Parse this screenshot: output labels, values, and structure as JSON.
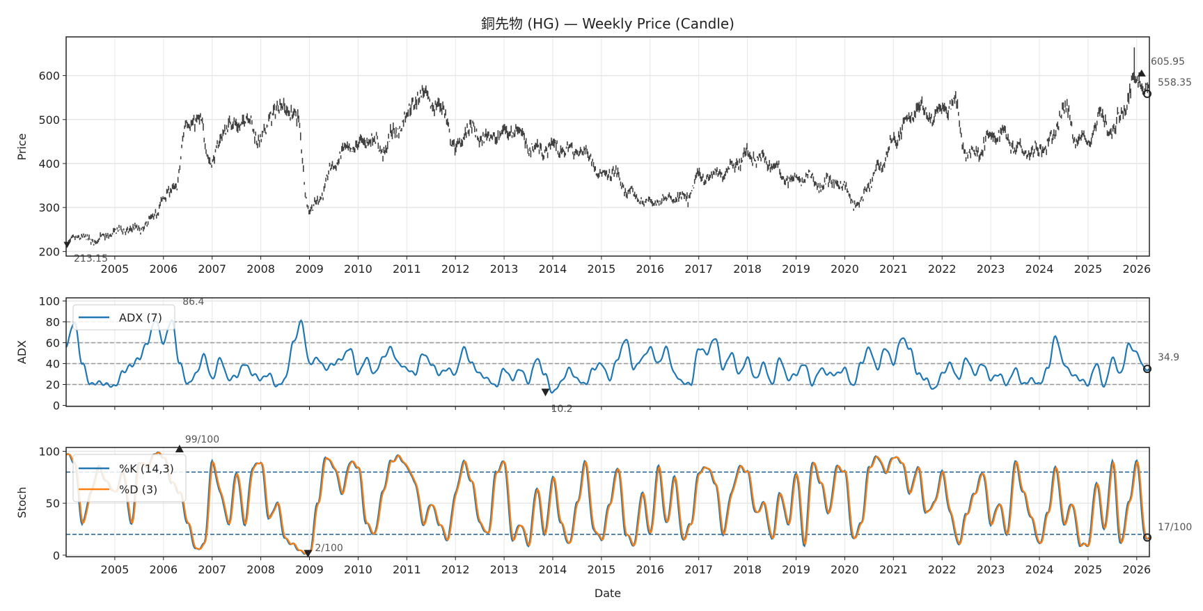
{
  "chart_data": [
    {
      "type": "candlestick",
      "title": "銅先物 (HG) — Weekly Price (Candle)",
      "ylabel": "Price",
      "xlim": [
        2004.0,
        2026.26
      ],
      "ylim": [
        189.5,
        688
      ],
      "yticks": [
        200,
        300,
        400,
        500,
        600
      ],
      "xticks": [
        "2005",
        "2006",
        "2007",
        "2008",
        "2009",
        "2010",
        "2011",
        "2012",
        "2013",
        "2014",
        "2015",
        "2016",
        "2017",
        "2018",
        "2019",
        "2020",
        "2021",
        "2022",
        "2023",
        "2024",
        "2025",
        "2026"
      ],
      "grid": true,
      "x_start": 2004.0,
      "x_step_years": 0.25,
      "close_quarterly": [
        215,
        235,
        225,
        230,
        245,
        250,
        250,
        270,
        320,
        350,
        500,
        490,
        400,
        480,
        490,
        500,
        450,
        520,
        530,
        500,
        290,
        330,
        400,
        430,
        440,
        460,
        430,
        470,
        510,
        560,
        540,
        520,
        430,
        480,
        460,
        460,
        470,
        480,
        440,
        430,
        440,
        430,
        430,
        420,
        370,
        380,
        340,
        320,
        310,
        320,
        320,
        320,
        370,
        370,
        380,
        400,
        420,
        410,
        400,
        370,
        360,
        370,
        350,
        360,
        345,
        300,
        350,
        400,
        450,
        490,
        530,
        510,
        520,
        540,
        420,
        430,
        460,
        470,
        440,
        430,
        430,
        450,
        530,
        460,
        450,
        510,
        470,
        530,
        600,
        558.35
      ],
      "annotations": {
        "min_label": "213.15",
        "max_label": "605.95",
        "last_label": "558.35"
      }
    },
    {
      "type": "line",
      "ylabel": "ADX",
      "ylim": [
        -1,
        103
      ],
      "yticks": [
        0,
        20,
        40,
        60,
        80,
        100
      ],
      "reference_lines": [
        20,
        40,
        60,
        80
      ],
      "legend": [
        "ADX (7)"
      ],
      "legend_position": "top-left",
      "x_start": 2004.0,
      "x_step_years": 0.16667,
      "series": [
        {
          "name": "ADX (7)",
          "color": "#1f77b4",
          "values": [
            57,
            80,
            40,
            20,
            22,
            20,
            18,
            32,
            38,
            45,
            60,
            82,
            60,
            82,
            40,
            20,
            30,
            48,
            25,
            45,
            25,
            28,
            40,
            30,
            25,
            30,
            18,
            25,
            60,
            80,
            40,
            45,
            35,
            40,
            45,
            55,
            30,
            45,
            30,
            45,
            55,
            40,
            35,
            30,
            50,
            40,
            30,
            35,
            30,
            55,
            40,
            30,
            25,
            18,
            35,
            25,
            35,
            22,
            45,
            30,
            12,
            22,
            35,
            25,
            20,
            35,
            40,
            25,
            45,
            64,
            35,
            45,
            55,
            40,
            55,
            30,
            22,
            20,
            55,
            50,
            65,
            35,
            50,
            30,
            45,
            25,
            40,
            20,
            45,
            25,
            30,
            40,
            20,
            35,
            30,
            30,
            35,
            18,
            40,
            55,
            35,
            55,
            40,
            65,
            55,
            30,
            25,
            15,
            30,
            40,
            25,
            45,
            30,
            40,
            25,
            30,
            20,
            35,
            20,
            25,
            20,
            35,
            66,
            40,
            30,
            25,
            20,
            40,
            18,
            45,
            30,
            58,
            50,
            34.9
          ]
        }
      ],
      "annotations": {
        "max_label": "86.4",
        "max_x": 2006.45,
        "min_label": "10.2",
        "min_x": 2013.85,
        "last_label": "34.9"
      }
    },
    {
      "type": "line",
      "ylabel": "Stoch",
      "xlabel": "Date",
      "ylim": [
        -1.5,
        103.7
      ],
      "yticks": [
        0,
        50,
        100
      ],
      "reference_lines": [
        20,
        80
      ],
      "legend": [
        "%K (14,3)",
        "%D (3)"
      ],
      "legend_position": "top-left",
      "x_start": 2004.0,
      "x_step_years": 0.16667,
      "series": [
        {
          "name": "%K (14,3)",
          "color": "#1f77b4",
          "values": [
            98,
            90,
            30,
            60,
            85,
            70,
            60,
            80,
            30,
            90,
            85,
            99,
            95,
            70,
            60,
            30,
            5,
            10,
            90,
            60,
            30,
            80,
            30,
            85,
            90,
            35,
            50,
            15,
            10,
            3,
            2,
            50,
            95,
            85,
            60,
            90,
            85,
            30,
            20,
            60,
            90,
            95,
            85,
            70,
            30,
            50,
            30,
            15,
            60,
            90,
            70,
            30,
            20,
            80,
            90,
            15,
            30,
            10,
            65,
            20,
            75,
            30,
            10,
            50,
            90,
            25,
            15,
            50,
            85,
            20,
            10,
            60,
            20,
            85,
            30,
            75,
            15,
            30,
            80,
            85,
            70,
            20,
            60,
            85,
            80,
            40,
            50,
            15,
            60,
            30,
            80,
            10,
            90,
            70,
            40,
            85,
            80,
            15,
            30,
            85,
            95,
            80,
            95,
            90,
            60,
            85,
            40,
            50,
            80,
            40,
            10,
            40,
            60,
            80,
            30,
            50,
            20,
            90,
            60,
            35,
            10,
            40,
            85,
            30,
            50,
            10,
            10,
            70,
            25,
            90,
            10,
            50,
            90,
            17
          ]
        },
        {
          "name": "%D (3)",
          "color": "#ff7f0e",
          "smoothing_of": "%K (14,3)",
          "period_weeks": 3
        }
      ],
      "annotations": {
        "max_label": "99/100",
        "max_x": 2006.33,
        "min_label": "2/100",
        "min_x": 2008.97,
        "last_label": "17/100"
      }
    }
  ]
}
